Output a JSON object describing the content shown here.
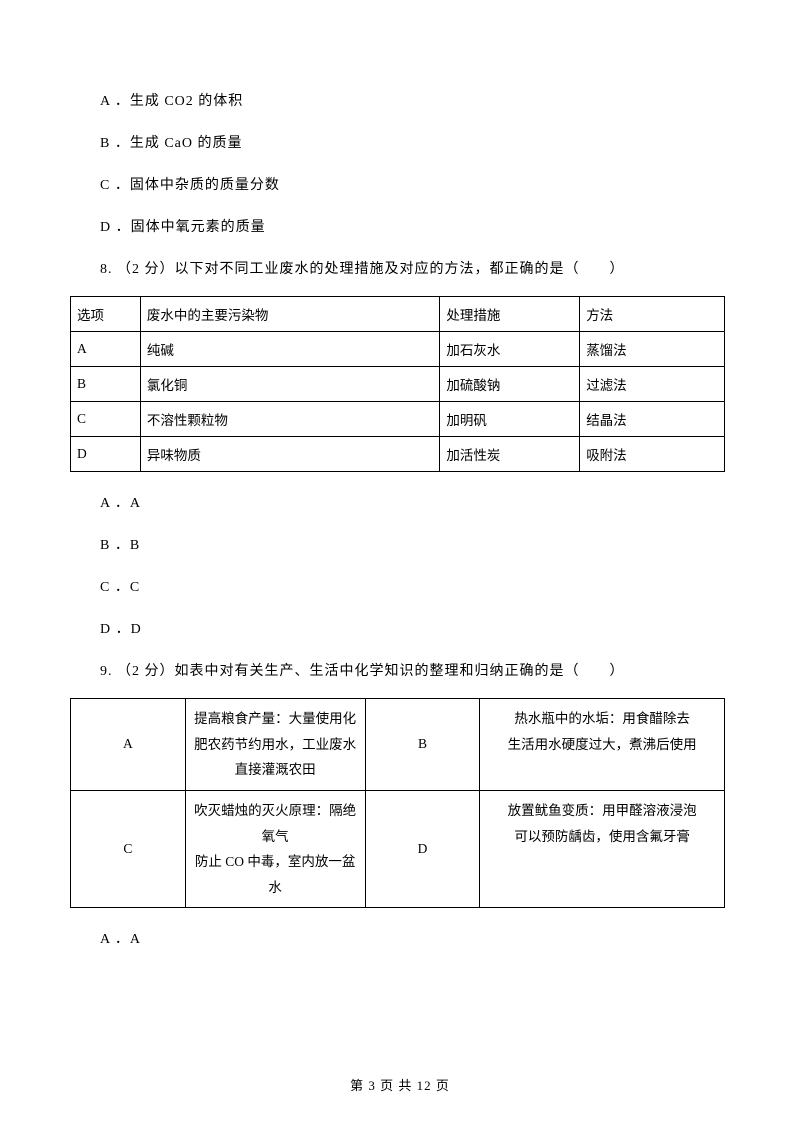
{
  "options_q7": {
    "a": "A ．生成 CO2 的体积",
    "b": "B ．生成 CaO 的质量",
    "c": "C ．固体中杂质的质量分数",
    "d": "D ．固体中氧元素的质量"
  },
  "q8": {
    "text": "8. （2 分）以下对不同工业废水的处理措施及对应的方法，都正确的是（　　）",
    "table": {
      "header": [
        "选项",
        "废水中的主要污染物",
        "处理措施",
        "方法"
      ],
      "rows": [
        [
          "A",
          "纯碱",
          "加石灰水",
          "蒸馏法"
        ],
        [
          "B",
          "氯化铜",
          "加硫酸钠",
          "过滤法"
        ],
        [
          "C",
          "不溶性颗粒物",
          "加明矾",
          "结晶法"
        ],
        [
          "D",
          "异味物质",
          "加活性炭",
          "吸附法"
        ]
      ]
    },
    "options": {
      "a": "A ．A",
      "b": "B ．B",
      "c": "C ．C",
      "d": "D ．D"
    }
  },
  "q9": {
    "text": "9. （2 分）如表中对有关生产、生活中化学知识的整理和归纳正确的是（　　）",
    "table": {
      "row1": {
        "c1": "A",
        "c2": "提高粮食产量：大量使用化肥农药节约用水，工业废水直接灌溉农田",
        "c3": "B",
        "c4a": "热水瓶中的水垢：用食醋除去",
        "c4b": "生活用水硬度过大，煮沸后使用"
      },
      "row2": {
        "c1": "C",
        "c2a": "吹灭蜡烛的灭火原理：隔绝氧气",
        "c2b": "防止 CO 中毒，室内放一盆水",
        "c3": "D",
        "c4a": "放置鱿鱼变质：用甲醛溶液浸泡",
        "c4b": "可以预防龋齿，使用含氟牙膏"
      }
    },
    "option_a": "A ．A"
  },
  "footer": "第 3 页 共 12 页"
}
